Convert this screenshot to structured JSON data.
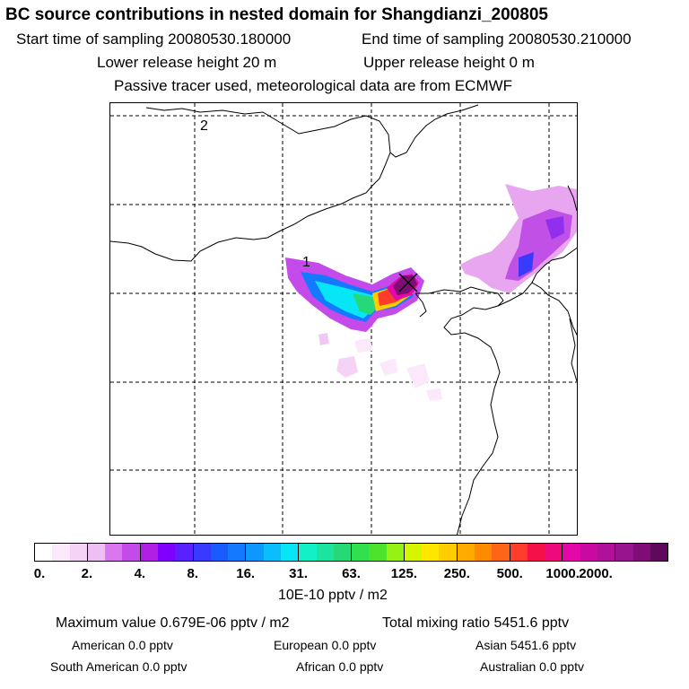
{
  "header": {
    "title": "BC  source contributions in nested domain for Shangdianzi_200805",
    "start_time": "Start time of sampling 20080530.180000",
    "end_time": "End time of sampling 20080530.210000",
    "lower_height": "Lower release height   20 m",
    "upper_height": "Upper release height    0 m",
    "info": "Passive tracer used, meteorological data are from ECMWF"
  },
  "map": {
    "labels": {
      "region_1": "1",
      "region_2": "2"
    },
    "receptor_marker": "x-marker-icon"
  },
  "legend": {
    "colors": [
      "#ffffff",
      "#fbe8fb",
      "#f5d3f7",
      "#eebff3",
      "#d978ee",
      "#c44ae9",
      "#b01ee4",
      "#8000ff",
      "#5b20ff",
      "#3a3aff",
      "#1a5bff",
      "#1479ff",
      "#0f99ff",
      "#0cbdfc",
      "#06e6f7",
      "#13f0c8",
      "#1de3a0",
      "#27d878",
      "#31e04f",
      "#4de32c",
      "#95f214",
      "#d6f500",
      "#ffe800",
      "#ffcd00",
      "#ffab00",
      "#ff8a00",
      "#ff6517",
      "#ff3d2a",
      "#f6104a",
      "#ee0a7c",
      "#e408a8",
      "#c80aa2",
      "#b0109a",
      "#98148f",
      "#7e0d76",
      "#5e0a5a"
    ],
    "ticks": [
      "0.",
      "2.",
      "4.",
      "8.",
      "16.",
      "31.",
      "63.",
      "125.",
      "250.",
      "500.",
      "1000.",
      "2000."
    ],
    "unit": "10E-10 pptv / m2"
  },
  "stats": {
    "max_value": "Maximum value  0.679E-06 pptv / m2",
    "total_mixing": "Total mixing ratio     5451.6 pptv",
    "american": "American       0.0 pptv",
    "european": "European       0.0 pptv",
    "asian": "Asian    5451.6 pptv",
    "south_american": "South American       0.0 pptv",
    "african": "African       0.0 pptv",
    "australian": "Australian       0.0 pptv"
  }
}
